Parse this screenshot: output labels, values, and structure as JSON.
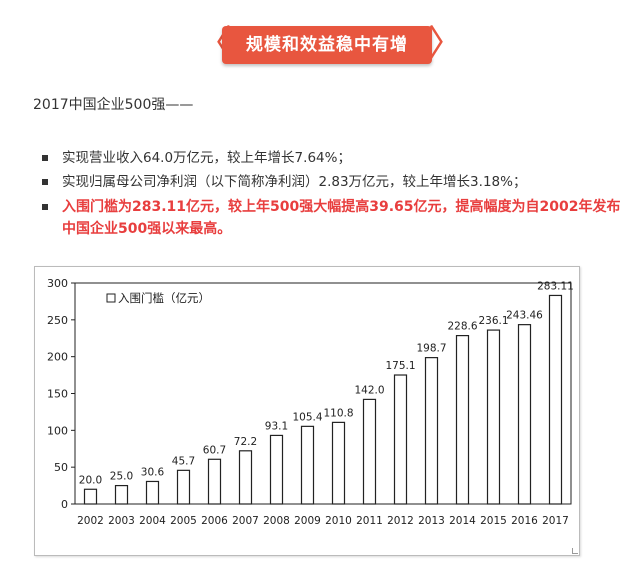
{
  "header": {
    "title": "规模和效益稳中有增",
    "left_bracket": "〈",
    "right_bracket": "〉",
    "accent_color": "#e8563f"
  },
  "intro": "2017中国企业500强——",
  "bullets": [
    {
      "text": "实现营业收入64.0万亿元，较上年增长7.64%；",
      "highlight": false
    },
    {
      "text": "实现归属母公司净利润（以下简称净利润）2.83万亿元，较上年增长3.18%；",
      "highlight": false
    },
    {
      "text": "入围门槛为283.11亿元，较上年500强大幅提高39.65亿元，提高幅度为自2002年发布中国企业500强以来最高。",
      "highlight": true
    }
  ],
  "highlight_color": "#e83e3e",
  "chart_data": {
    "type": "bar",
    "legend": "入围门槛（亿元）",
    "categories": [
      "2002",
      "2003",
      "2004",
      "2005",
      "2006",
      "2007",
      "2008",
      "2009",
      "2010",
      "2011",
      "2012",
      "2013",
      "2014",
      "2015",
      "2016",
      "2017"
    ],
    "values": [
      20.0,
      25.0,
      30.6,
      45.7,
      60.7,
      72.2,
      93.1,
      105.4,
      110.8,
      142.0,
      175.1,
      198.7,
      228.6,
      236.1,
      243.46,
      283.11
    ],
    "value_labels": [
      "20.0",
      "25.0",
      "30.6",
      "45.7",
      "60.7",
      "72.2",
      "93.1",
      "105.4",
      "110.8",
      "142.0",
      "175.1",
      "198.7",
      "228.6",
      "236.1",
      "243.46",
      "283.11"
    ],
    "yticks": [
      0,
      50,
      100,
      150,
      200,
      250,
      300
    ],
    "ylim": [
      0,
      300
    ],
    "legend_position": "top-left",
    "grid": false,
    "bar_fill": "#ffffff",
    "bar_stroke": "#222222"
  }
}
